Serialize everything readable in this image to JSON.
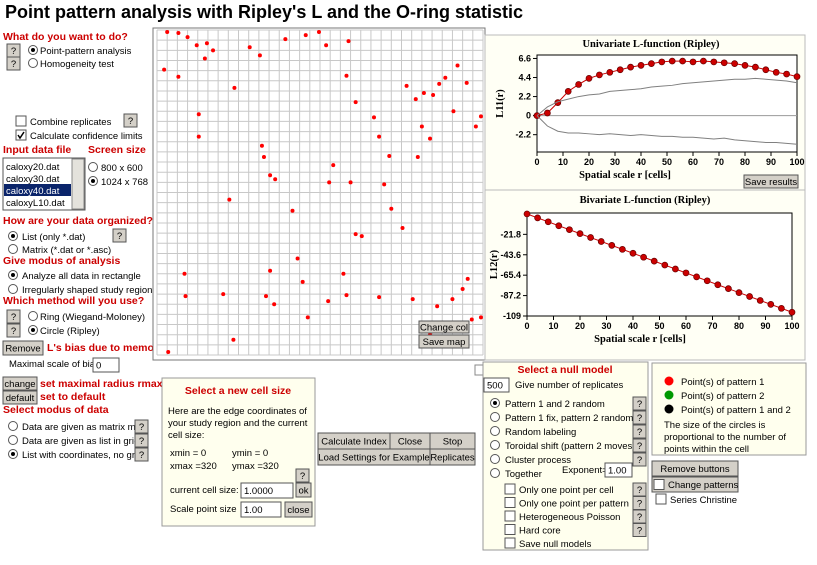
{
  "header": {
    "title": "Point pattern analysis with Ripley's L and the O-ring statistic"
  },
  "controls": {
    "help": "?",
    "q_do": "What do you want to do?",
    "opt_ppa": "Point-pattern analysis",
    "opt_homog": "Homogeneity test",
    "combine": "Combine replicates",
    "confidence": "Calculate confidence limits",
    "input_file": "Input data file",
    "screen_size": "Screen size",
    "files": [
      "caloxy20.dat",
      "caloxy30.dat",
      "caloxy40.dat",
      "caloxyL10.dat"
    ],
    "sizes": [
      "800 x 600",
      "1024 x 768"
    ],
    "q_org": "How are your data organized?",
    "org_list": "List   (only *.dat)",
    "org_matrix": "Matrix (*.dat or *.asc)",
    "q_modus": "Give modus of analysis",
    "modus_all": "Analyze all data in rectangle",
    "modus_irr": "Irregularly shaped study region",
    "q_method": "Which method will you use?",
    "method_ring": "Ring (Wiegand-Moloney)",
    "method_circle": "Circle (Ripley)",
    "remove": "Remove",
    "bias": "L's bias due to memory",
    "max_bias": "Maximal scale of bias:",
    "max_bias_value": "0",
    "change": "change",
    "set_max": "set maximal radius rmax",
    "default": "default",
    "set_default": "set to default",
    "q_data": "Select modus of data",
    "data_matrix": "Data are given as matrix map",
    "data_list_grid": "Data are given as list in grid",
    "data_list_coord": "List with coordinates, no grid"
  },
  "cell_size": {
    "title": "Select a new cell size",
    "desc_lines": [
      "Here are the edge coordinates of",
      "your study region and the current",
      "cell size:"
    ],
    "xmin": "xmin = 0",
    "ymin": "ymin = 0",
    "xmax": "xmax =320",
    "ymax": "ymax =320",
    "current": "current cell size:",
    "current_value": "1.0000",
    "ok": "ok",
    "scale": "Scale point size",
    "scale_value": "1.00",
    "close": "close"
  },
  "actions": {
    "calculate": "Calculate Index",
    "close": "Close",
    "stop": "Stop",
    "load": "Load Settings for Example",
    "replicates": "Replicates"
  },
  "map": {
    "change_col": "Change col",
    "save_map": "Save map",
    "color": "#ff0000",
    "xlim": [
      0,
      320
    ],
    "ylim": [
      0,
      320
    ],
    "points": {
      "x": [
        10,
        21,
        30,
        39,
        49,
        55,
        47,
        7,
        21,
        91,
        76,
        101,
        126,
        146,
        159,
        166,
        188,
        186,
        195,
        213,
        218,
        228,
        245,
        254,
        262,
        271,
        277,
        283,
        291,
        295,
        304,
        313,
        318,
        260,
        268,
        256,
        223,
        230,
        195,
        201,
        173,
        103,
        111,
        116,
        105,
        133,
        71,
        41,
        41,
        27,
        28,
        65,
        75,
        111,
        107,
        115,
        168,
        148,
        138,
        143,
        183,
        186,
        218,
        251,
        268,
        305,
        300,
        290,
        318,
        275,
        309,
        241,
        11,
        190,
        169
      ],
      "y": [
        318,
        317,
        313,
        305,
        307,
        300,
        292,
        281,
        274,
        303,
        263,
        295,
        311,
        315,
        318,
        305,
        309,
        275,
        249,
        234,
        215,
        196,
        265,
        252,
        258,
        256,
        267,
        273,
        240,
        285,
        268,
        225,
        235,
        225,
        213,
        195,
        168,
        144,
        119,
        117,
        187,
        206,
        177,
        173,
        195,
        142,
        153,
        215,
        237,
        80,
        58,
        60,
        15,
        83,
        58,
        50,
        53,
        37,
        95,
        72,
        80,
        59,
        57,
        55,
        20,
        75,
        65,
        55,
        37,
        48,
        35,
        125,
        3,
        170,
        170
      ]
    }
  },
  "save_results": "Save results",
  "chart_data": [
    {
      "type": "line",
      "title": "Univariate L-function (Ripley)",
      "xlabel": "Spatial scale r [cells]",
      "ylabel": "L11(r)",
      "x": [
        0,
        4,
        8,
        12,
        16,
        20,
        24,
        28,
        32,
        36,
        40,
        44,
        48,
        52,
        56,
        60,
        64,
        68,
        72,
        76,
        80,
        84,
        88,
        92,
        96,
        100
      ],
      "xlim": [
        0,
        100
      ],
      "xticks": [
        0,
        10,
        20,
        30,
        40,
        50,
        60,
        70,
        80,
        90,
        100
      ],
      "ylim": [
        -4.2,
        7
      ],
      "yticks": [
        6.6,
        4.4,
        2.2,
        0,
        -2.2
      ],
      "reference_line": 0,
      "series": [
        {
          "color": "#cc0000",
          "markers": true,
          "values": [
            0,
            0.3,
            1.5,
            2.8,
            3.6,
            4.3,
            4.7,
            5.0,
            5.3,
            5.6,
            5.8,
            6.0,
            6.2,
            6.3,
            6.3,
            6.2,
            6.3,
            6.2,
            6.1,
            6.0,
            5.8,
            5.6,
            5.3,
            5.0,
            4.8,
            4.5
          ]
        },
        {
          "color": "#808080",
          "values": [
            0,
            1.0,
            1.6,
            1.9,
            2.2,
            2.4,
            2.5,
            2.8,
            2.9,
            3.0,
            3.1,
            3.3,
            3.4,
            3.5,
            3.7,
            3.8,
            3.9,
            4.0,
            4.1,
            4.2,
            4.2,
            4.3,
            4.2,
            4.1,
            4.0,
            3.8
          ]
        },
        {
          "color": "#808080",
          "values": [
            0,
            -1.2,
            -1.8,
            -2.0,
            -2.0,
            -2.1,
            -2.2,
            -2.1,
            -2.2,
            -2.3,
            -2.2,
            -2.3,
            -2.4,
            -2.4,
            -2.5,
            -2.5,
            -2.6,
            -2.7,
            -2.6,
            -2.8,
            -2.9,
            -3.0,
            -3.1,
            -3.1,
            -3.2,
            -3.3
          ]
        }
      ]
    },
    {
      "type": "line",
      "title": "Bivariate L-function (Ripley)",
      "xlabel": "Spatial scale r [cells]",
      "ylabel": "L12(r)",
      "x": [
        0,
        4,
        8,
        12,
        16,
        20,
        24,
        28,
        32,
        36,
        40,
        44,
        48,
        52,
        56,
        60,
        64,
        68,
        72,
        76,
        80,
        84,
        88,
        92,
        96,
        100
      ],
      "xlim": [
        0,
        100
      ],
      "xticks": [
        0,
        10,
        20,
        30,
        40,
        50,
        60,
        70,
        80,
        90,
        100
      ],
      "ylim": [
        -109,
        1
      ],
      "yticks": [
        -21.8,
        -43.6,
        -65.4,
        -87.2,
        -109
      ],
      "series": [
        {
          "color": "#cc0000",
          "markers": true,
          "values": [
            0,
            -4.2,
            -8.4,
            -12.6,
            -16.8,
            -21,
            -25.2,
            -29.4,
            -33.6,
            -37.8,
            -42,
            -46.2,
            -50.4,
            -54.6,
            -58.8,
            -63,
            -67.2,
            -71.4,
            -75.6,
            -79.8,
            -84,
            -88.2,
            -92.4,
            -96.6,
            -100.8,
            -105
          ]
        }
      ]
    }
  ],
  "null_model": {
    "title": "Select a null model",
    "replicates_value": "500",
    "replicates": "Give number of replicates",
    "options": [
      "Pattern 1 and 2 random",
      "Pattern 1 fix, pattern 2 random",
      "Random labeling",
      "Toroidal shift (pattern 2 moves)",
      "Cluster process",
      "Together"
    ],
    "exponent": "Exponent=",
    "exponent_value": "1.00",
    "checks": [
      "Only one point per cell",
      "Only one point per pattern",
      "Heterogeneous Poisson",
      "Hard core",
      "Save null models"
    ]
  },
  "legend": {
    "items": [
      {
        "label": "Point(s) of pattern 1",
        "color": "#ff0000"
      },
      {
        "label": "Point(s) of pattern 2",
        "color": "#009900"
      },
      {
        "label": "Point(s) of pattern 1 and 2",
        "color": "#000000"
      }
    ],
    "note_lines": [
      "The size of the circles is",
      "proportional to the number of",
      "points within the cell"
    ]
  },
  "side_buttons": {
    "remove_buttons": "Remove buttons",
    "change_patterns": "Change patterns",
    "series": "Series Christine"
  }
}
